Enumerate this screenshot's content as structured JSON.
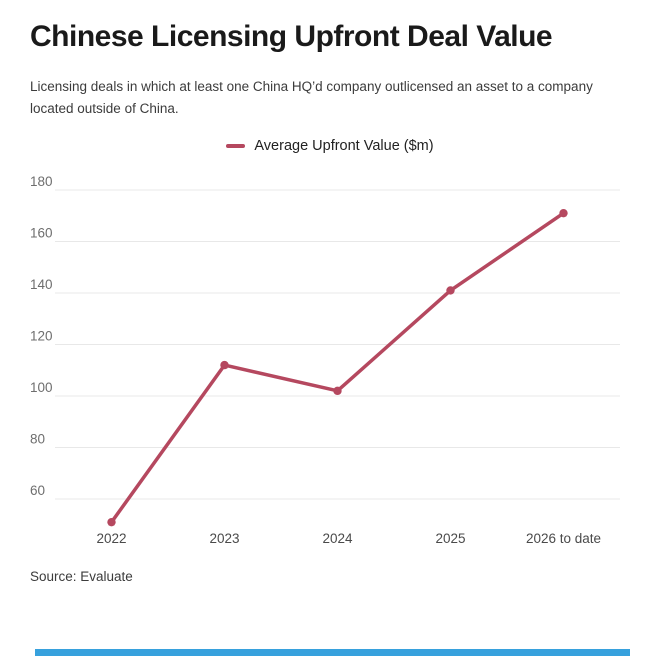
{
  "header": {
    "title": "Chinese Licensing Upfront Deal Value",
    "subtitle": "Licensing deals in which at least one China HQ’d company outlicensed an asset to a company located outside of China."
  },
  "legend": {
    "label": "Average Upfront Value ($m)"
  },
  "source_note": "Source: Evaluate",
  "colors": {
    "line": "#b5485f",
    "marker": "#b5485f",
    "grid": "#e8e8e8",
    "tick_label": "#6e6e6e",
    "x_label": "#4a4a4a",
    "accent_bar": "#37a1dd"
  },
  "chart_data": {
    "type": "line",
    "categories": [
      "2022",
      "2023",
      "2024",
      "2025",
      "2026 to date"
    ],
    "series": [
      {
        "name": "Average Upfront Value ($m)",
        "values": [
          51,
          112,
          102,
          141,
          171
        ]
      }
    ],
    "title": "Chinese Licensing Upfront Deal Value",
    "xlabel": "",
    "ylabel": "Average Upfront Value ($m)",
    "ylim": [
      45,
      184
    ],
    "yticks": [
      60,
      80,
      100,
      120,
      140,
      160,
      180
    ],
    "grid": true,
    "legend_position": "top-center"
  }
}
